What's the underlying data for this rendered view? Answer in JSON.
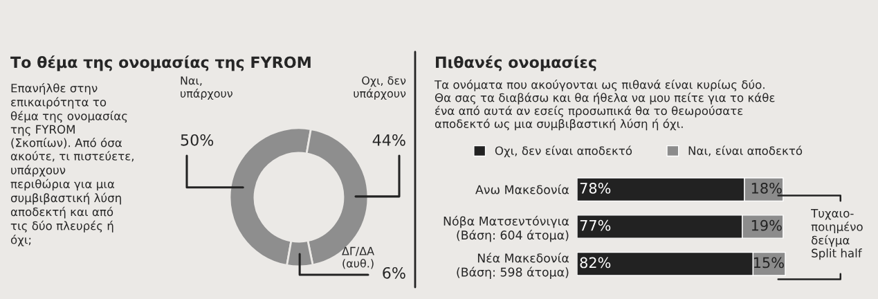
{
  "chart_data": [
    {
      "type": "donut",
      "title": "Το θέμα της ονομασίας της FYROM",
      "subtitle": "Επανήλθε στην\nεπικαιρότητα το\nθέμα της ονομασίας\nτης FYROM\n(Σκοπίων). Από όσα\nακούτε, τι πιστεύετε,\nυπάρχουν\nπεριθώρια για μια\nσυμβιβαστική λύση\nαποδεκτή και από\nτις δύο πλευρές ή\nόχι;",
      "categories": [
        "Ναι,\nυπάρχουν",
        "Οχι, δεν\nυπάρχουν",
        "ΔΓ/ΔΑ\n(αυθ.)"
      ],
      "values": [
        50,
        44,
        6
      ],
      "value_labels": [
        "50%",
        "44%",
        "6%"
      ],
      "colors": [
        "#8e8e8e",
        "#8e8e8e",
        "#8e8e8e"
      ]
    },
    {
      "type": "bar",
      "orientation": "horizontal",
      "stacked": true,
      "title": "Πιθανές ονομασίες",
      "subtitle": "Τα ονόματα που ακούγονται ως πιθανά είναι κυρίως δύο.\nΘα σας τα διαβάσω και θα ήθελα να μου πείτε για το κάθε\nένα από αυτά αν εσείς προσωπικά θα το θεωρούσατε\nαποδεκτό ως μια συμβιβαστική λύση ή όχι.",
      "categories": [
        "Ανω Μακεδονία",
        "Νόβα Ματσεντόνιγια\n(Βάση: 604 άτομα)",
        "Νέα Μακεδονία\n(Βάση: 598 άτομα)"
      ],
      "series": [
        {
          "name": "Οχι, δεν είναι αποδεκτό",
          "color": "#222222",
          "values": [
            78,
            77,
            82
          ],
          "value_labels": [
            "78%",
            "77%",
            "82%"
          ]
        },
        {
          "name": "Ναι, είναι αποδεκτό",
          "color": "#8c8c8c",
          "values": [
            18,
            19,
            15
          ],
          "value_labels": [
            "18%",
            "19%",
            "15%"
          ]
        }
      ],
      "legend": "top",
      "tick_labels": "y",
      "annotations": [
        "Τυχαιο-\nποιημένο\nδείγμα\nSplit half"
      ]
    }
  ]
}
